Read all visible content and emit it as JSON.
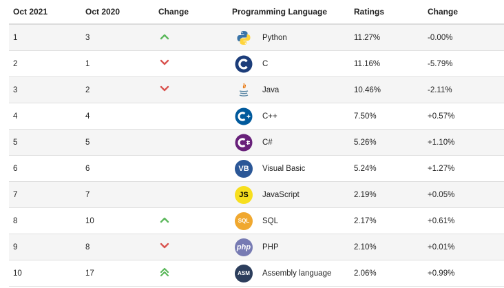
{
  "header": {
    "col_oct2021": "Oct 2021",
    "col_oct2020": "Oct 2020",
    "col_change": "Change",
    "col_language": "Programming Language",
    "col_ratings": "Ratings",
    "col_change2": "Change"
  },
  "colors": {
    "up": "#5cb85c",
    "down": "#d9534f",
    "python_blue": "#3a74a8",
    "python_yellow": "#ffd43b",
    "c_blue": "#1c3d7a",
    "cpp_blue": "#00599c",
    "csharp_purple": "#68217a",
    "vb_blue": "#2b5797",
    "js_yellow": "#f7df1e",
    "sql_orange": "#f0a82f",
    "php_purple": "#777bb3",
    "asm_navy": "#2c3e5c"
  },
  "rows": [
    {
      "rank2021": "1",
      "rank2020": "3",
      "trend": "up",
      "trend_icon": "chevron-up-icon",
      "language": "Python",
      "logo": "python-logo-icon",
      "rating": "11.27%",
      "change": "-0.00%"
    },
    {
      "rank2021": "2",
      "rank2020": "1",
      "trend": "down",
      "trend_icon": "chevron-down-icon",
      "language": "C",
      "logo": "c-logo-icon",
      "rating": "11.16%",
      "change": "-5.79%"
    },
    {
      "rank2021": "3",
      "rank2020": "2",
      "trend": "down",
      "trend_icon": "chevron-down-icon",
      "language": "Java",
      "logo": "java-logo-icon",
      "rating": "10.46%",
      "change": "-2.11%"
    },
    {
      "rank2021": "4",
      "rank2020": "4",
      "trend": "none",
      "trend_icon": "",
      "language": "C++",
      "logo": "cpp-logo-icon",
      "rating": "7.50%",
      "change": "+0.57%"
    },
    {
      "rank2021": "5",
      "rank2020": "5",
      "trend": "none",
      "trend_icon": "",
      "language": "C#",
      "logo": "csharp-logo-icon",
      "rating": "5.26%",
      "change": "+1.10%"
    },
    {
      "rank2021": "6",
      "rank2020": "6",
      "trend": "none",
      "trend_icon": "",
      "language": "Visual Basic",
      "logo": "visual-basic-logo-icon",
      "logo_text": "VB",
      "rating": "5.24%",
      "change": "+1.27%"
    },
    {
      "rank2021": "7",
      "rank2020": "7",
      "trend": "none",
      "trend_icon": "",
      "language": "JavaScript",
      "logo": "javascript-logo-icon",
      "logo_text": "JS",
      "rating": "2.19%",
      "change": "+0.05%"
    },
    {
      "rank2021": "8",
      "rank2020": "10",
      "trend": "up",
      "trend_icon": "chevron-up-icon",
      "language": "SQL",
      "logo": "sql-logo-icon",
      "logo_text": "SQL",
      "rating": "2.17%",
      "change": "+0.61%"
    },
    {
      "rank2021": "9",
      "rank2020": "8",
      "trend": "down",
      "trend_icon": "chevron-down-icon",
      "language": "PHP",
      "logo": "php-logo-icon",
      "logo_text": "php",
      "rating": "2.10%",
      "change": "+0.01%"
    },
    {
      "rank2021": "10",
      "rank2020": "17",
      "trend": "double-up",
      "trend_icon": "double-chevron-up-icon",
      "language": "Assembly language",
      "logo": "assembly-logo-icon",
      "logo_text": "ASM",
      "rating": "2.06%",
      "change": "+0.99%"
    }
  ]
}
